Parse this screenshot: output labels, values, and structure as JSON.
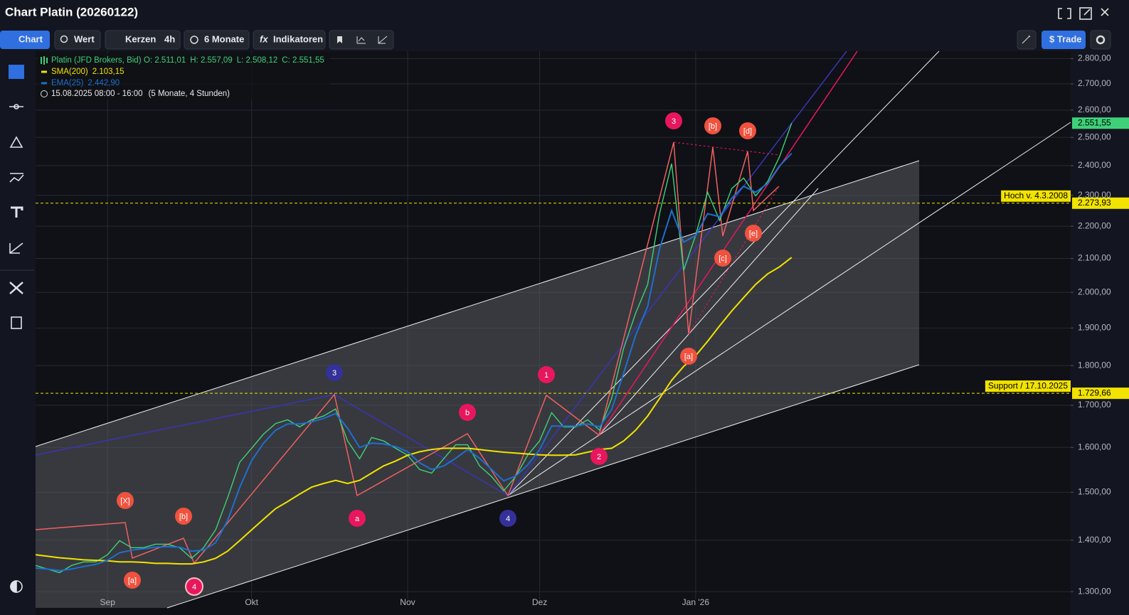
{
  "header": {
    "title": "Chart Platin (20260122)",
    "toolbar": {
      "chart": "Chart",
      "wert": "Wert",
      "kerzen": "Kerzen",
      "interval": "4h",
      "range": "6 Monate",
      "indicators_icon": "fx",
      "indicators": "Indikatoren",
      "trade": "$ Trade"
    }
  },
  "chart_data": {
    "type": "line",
    "log_scale": true,
    "grid": true,
    "legend": {
      "ohlc": [
        "O: 2.511,01",
        "H: 2.557,09",
        "L: 2.508,12",
        "C: 2.551,55"
      ],
      "period": "15.08.2025 08:00 - 16:00",
      "period_note": "(5 Monate, 4 Stunden)"
    },
    "categories": [
      null,
      null,
      null,
      null,
      null,
      null,
      "Sep",
      null,
      null,
      null,
      null,
      null,
      null,
      null,
      null,
      null,
      null,
      null,
      "Okt",
      null,
      null,
      null,
      null,
      null,
      null,
      null,
      null,
      null,
      null,
      null,
      null,
      "Nov",
      null,
      null,
      null,
      null,
      null,
      null,
      null,
      null,
      null,
      null,
      "Dez",
      null,
      null,
      null,
      null,
      null,
      null,
      null,
      null,
      null,
      null,
      null,
      null,
      "Jan '26",
      null,
      null,
      null,
      null,
      null,
      null,
      null,
      null
    ],
    "series": [
      {
        "name": "Platin (JFD Brokers, Bid)",
        "color": "#3fd17a",
        "last_label": "2.551,55",
        "values": [
          1350,
          1343,
          1336,
          1350,
          1357,
          1357,
          1371,
          1399,
          1385,
          1385,
          1392,
          1392,
          1385,
          1364,
          1385,
          1421,
          1488,
          1566,
          1598,
          1631,
          1656,
          1665,
          1648,
          1665,
          1674,
          1691,
          1615,
          1574,
          1623,
          1615,
          1598,
          1582,
          1550,
          1542,
          1574,
          1606,
          1606,
          1558,
          1534,
          1503,
          1534,
          1582,
          1615,
          1682,
          1648,
          1648,
          1665,
          1640,
          1717,
          1845,
          1941,
          2023,
          2241,
          2407,
          2064,
          2172,
          2310,
          2218,
          2322,
          2358,
          2298,
          2346,
          2432,
          2551.55
        ]
      },
      {
        "name": "SMA(200)",
        "color": "#f2e300",
        "value_label": "2.103,15",
        "values": [
          1371,
          1368,
          1365,
          1363,
          1361,
          1360,
          1359,
          1357,
          1357,
          1356,
          1354,
          1354,
          1353,
          1353,
          1357,
          1364,
          1378,
          1399,
          1421,
          1443,
          1465,
          1480,
          1496,
          1511,
          1519,
          1526,
          1519,
          1526,
          1542,
          1558,
          1569,
          1582,
          1590,
          1595,
          1598,
          1598,
          1598,
          1595,
          1592,
          1589,
          1587,
          1585,
          1583,
          1582,
          1582,
          1583,
          1589,
          1595,
          1598,
          1615,
          1640,
          1674,
          1717,
          1762,
          1798,
          1826,
          1864,
          1906,
          1947,
          1985,
          2023,
          2054,
          2075,
          2103.15
        ]
      },
      {
        "name": "EMA(25)",
        "color": "#1e6fd0",
        "value_label": "2.442,90",
        "values": [
          1345,
          1343,
          1340,
          1343,
          1348,
          1352,
          1360,
          1375,
          1380,
          1383,
          1386,
          1387,
          1386,
          1378,
          1380,
          1395,
          1440,
          1510,
          1570,
          1610,
          1640,
          1655,
          1655,
          1660,
          1668,
          1680,
          1645,
          1600,
          1610,
          1608,
          1602,
          1590,
          1565,
          1550,
          1558,
          1575,
          1595,
          1575,
          1550,
          1525,
          1535,
          1560,
          1595,
          1650,
          1650,
          1650,
          1655,
          1648,
          1690,
          1780,
          1880,
          1960,
          2130,
          2250,
          2150,
          2170,
          2240,
          2230,
          2290,
          2330,
          2310,
          2340,
          2400,
          2442.9
        ]
      }
    ],
    "ylim": [
      1270,
      2830
    ],
    "yticks": [
      {
        "value": 1300,
        "label": "1.300,00"
      },
      {
        "value": 1400,
        "label": "1.400,00"
      },
      {
        "value": 1500,
        "label": "1.500,00"
      },
      {
        "value": 1600,
        "label": "1.600,00"
      },
      {
        "value": 1700,
        "label": "1.700,00"
      },
      {
        "value": 1800,
        "label": "1.800,00"
      },
      {
        "value": 1900,
        "label": "1.900,00"
      },
      {
        "value": 2000,
        "label": "2.000,00"
      },
      {
        "value": 2100,
        "label": "2.100,00"
      },
      {
        "value": 2200,
        "label": "2.200,00"
      },
      {
        "value": 2300,
        "label": "2.300,00"
      },
      {
        "value": 2400,
        "label": "2.400,00"
      },
      {
        "value": 2500,
        "label": "2.500,00"
      },
      {
        "value": 2600,
        "label": "2.600,00"
      },
      {
        "value": 2700,
        "label": "2.700,00"
      },
      {
        "value": 2800,
        "label": "2.800,00"
      }
    ],
    "levels": [
      {
        "name": "Hoch v. 4.3.2008",
        "value": 2273.93,
        "label": "2.273,93"
      },
      {
        "name": "Support / 17.10.2025",
        "value": 1729.66,
        "label": "1.729,66"
      }
    ],
    "wave_labels": [
      {
        "text": "[X]",
        "color": "#f0523f"
      },
      {
        "text": "[a]",
        "color": "#f0523f"
      },
      {
        "text": "[b]",
        "color": "#f0523f"
      },
      {
        "text": "4",
        "color": "#e8175d"
      },
      {
        "text": "3",
        "color": "#35319a"
      },
      {
        "text": "a",
        "color": "#e8175d"
      },
      {
        "text": "b",
        "color": "#e8175d"
      },
      {
        "text": "4",
        "color": "#35319a"
      },
      {
        "text": "1",
        "color": "#e8175d"
      },
      {
        "text": "2",
        "color": "#e8175d"
      },
      {
        "text": "3",
        "color": "#e8175d"
      },
      {
        "text": "[b]",
        "color": "#f0523f"
      },
      {
        "text": "[d]",
        "color": "#f0523f"
      },
      {
        "text": "[e]",
        "color": "#f0523f"
      },
      {
        "text": "[c]",
        "color": "#f0523f"
      },
      {
        "text": "[a]",
        "color": "#f0523f"
      }
    ]
  }
}
